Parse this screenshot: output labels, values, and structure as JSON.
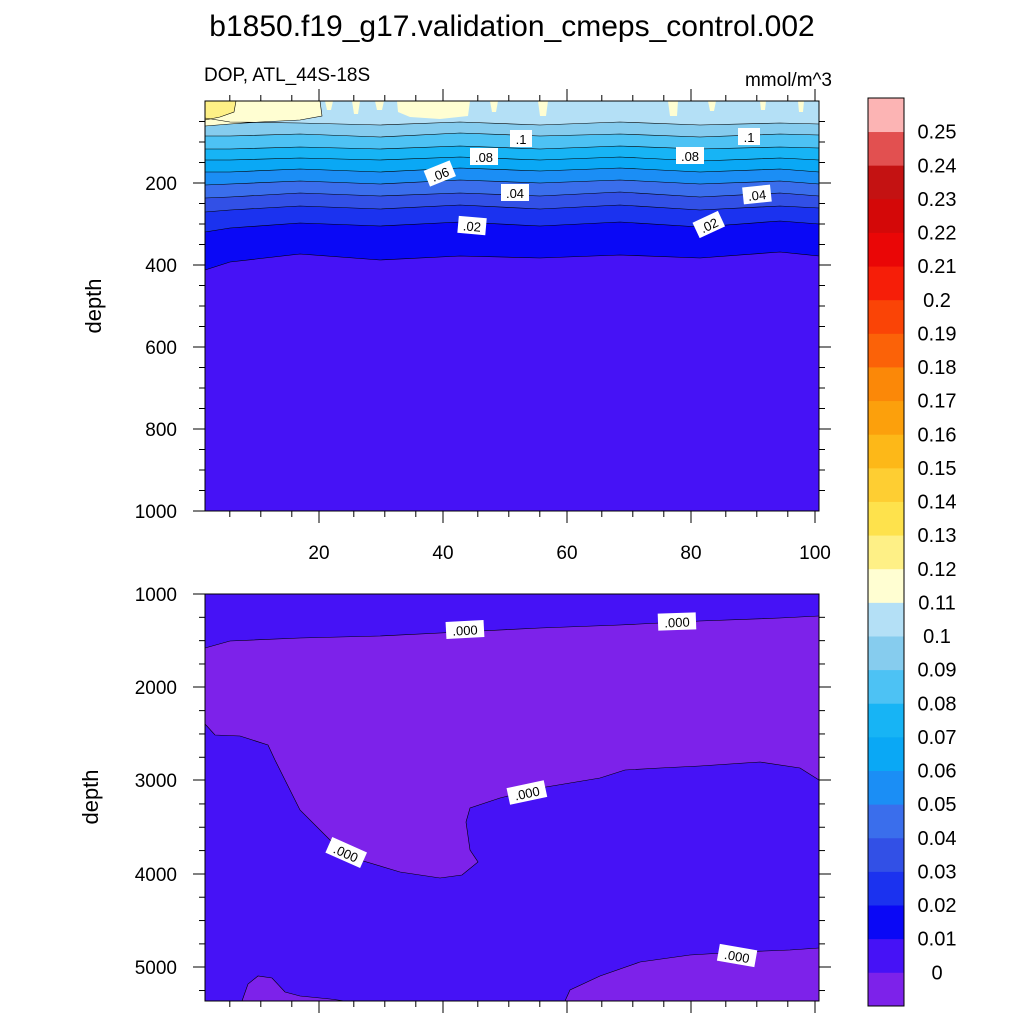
{
  "chart_data": {
    "type": "contour",
    "title": "b1850.f19_g17.validation_cmeps_control.002",
    "variable_label": "DOP, ATL_44S-18S",
    "units_label": "mmol/m^3",
    "colorbar": {
      "levels": [
        "0",
        "0.01",
        "0.02",
        "0.03",
        "0.04",
        "0.05",
        "0.06",
        "0.07",
        "0.08",
        "0.09",
        "0.1",
        "0.11",
        "0.12",
        "0.13",
        "0.14",
        "0.15",
        "0.16",
        "0.17",
        "0.18",
        "0.19",
        "0.2",
        "0.21",
        "0.22",
        "0.23",
        "0.24",
        "0.25"
      ],
      "colors": [
        "#7d22ea",
        "#4612f6",
        "#0a08f6",
        "#1b32ef",
        "#3250e6",
        "#3a6eec",
        "#1b8ef5",
        "#0aa8f5",
        "#17b4f5",
        "#4dc2f4",
        "#86ccee",
        "#b4e0f6",
        "#fffed2",
        "#fef086",
        "#fee24c",
        "#fece32",
        "#fdb818",
        "#fca00c",
        "#fb8808",
        "#fb6208",
        "#fa4406",
        "#f61e08",
        "#ea0606",
        "#d40808",
        "#c41212",
        "#e25050",
        "#fcb4b4"
      ]
    },
    "panels": [
      {
        "name": "upper",
        "ylabel": "depth",
        "x_range": [
          1,
          101
        ],
        "y_range": [
          0,
          1000
        ],
        "x_ticks": [
          "20",
          "40",
          "60",
          "80",
          "100"
        ],
        "y_ticks": [
          "200",
          "400",
          "600",
          "800",
          "1000"
        ],
        "contour_labels": [
          ".1",
          ".1",
          ".08",
          ".08",
          ".06",
          ".04",
          ".04",
          ".02",
          ".02"
        ]
      },
      {
        "name": "lower",
        "ylabel": "depth",
        "x_range": [
          1,
          101
        ],
        "y_range": [
          1000,
          5400
        ],
        "y_ticks": [
          "1000",
          "2000",
          "3000",
          "4000",
          "5000"
        ],
        "contour_labels": [
          ".000",
          ".000",
          ".000",
          ".000",
          ".000"
        ]
      }
    ]
  }
}
